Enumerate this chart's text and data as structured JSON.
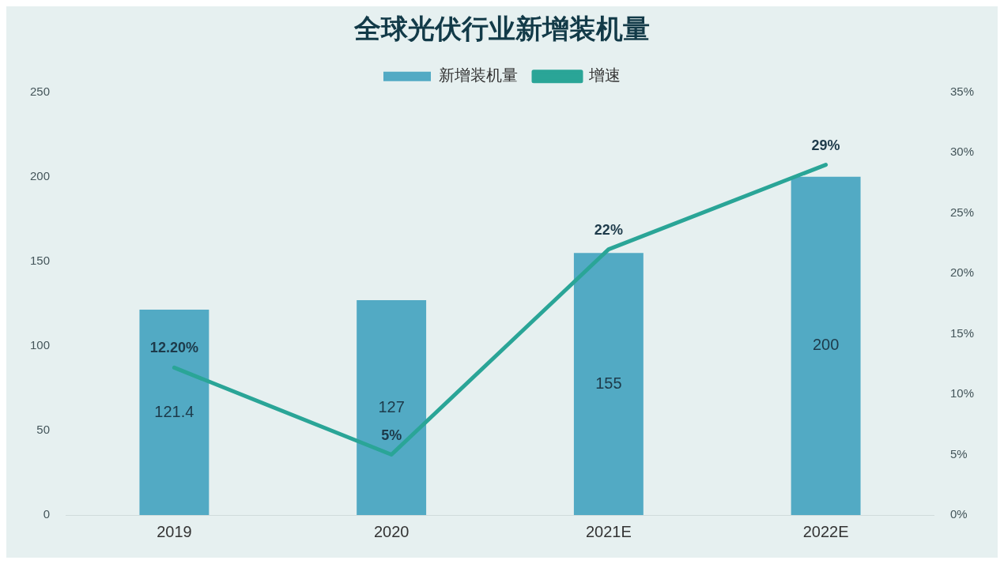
{
  "chart_data": {
    "type": "bar",
    "title": "全球光伏行业新增装机量",
    "categories": [
      "2019",
      "2020",
      "2021E",
      "2022E"
    ],
    "series": [
      {
        "name": "新增装机量",
        "color": "#52aac4",
        "values": [
          121.4,
          127,
          155,
          200
        ],
        "value_labels": [
          "121.4",
          "127",
          "155",
          "200"
        ]
      },
      {
        "name": "增速",
        "type": "line",
        "axis": "y2",
        "color": "#2aa597",
        "values": [
          12.2,
          5,
          22,
          29
        ],
        "value_labels": [
          "12.20%",
          "5%",
          "22%",
          "29%"
        ]
      }
    ],
    "ylim": [
      0,
      250
    ],
    "yticks": [
      0,
      50,
      100,
      150,
      200,
      250
    ],
    "y2lim": [
      0,
      35
    ],
    "y2ticks": [
      {
        "value": 0,
        "label": "0%"
      },
      {
        "value": 5,
        "label": "5%"
      },
      {
        "value": 10,
        "label": "10%"
      },
      {
        "value": 15,
        "label": "15%"
      },
      {
        "value": 20,
        "label": "20%"
      },
      {
        "value": 25,
        "label": "25%"
      },
      {
        "value": 30,
        "label": "30%"
      },
      {
        "value": 35,
        "label": "35%"
      }
    ],
    "grid": false,
    "legend": "top",
    "marker": "none",
    "line_style": "solid"
  }
}
